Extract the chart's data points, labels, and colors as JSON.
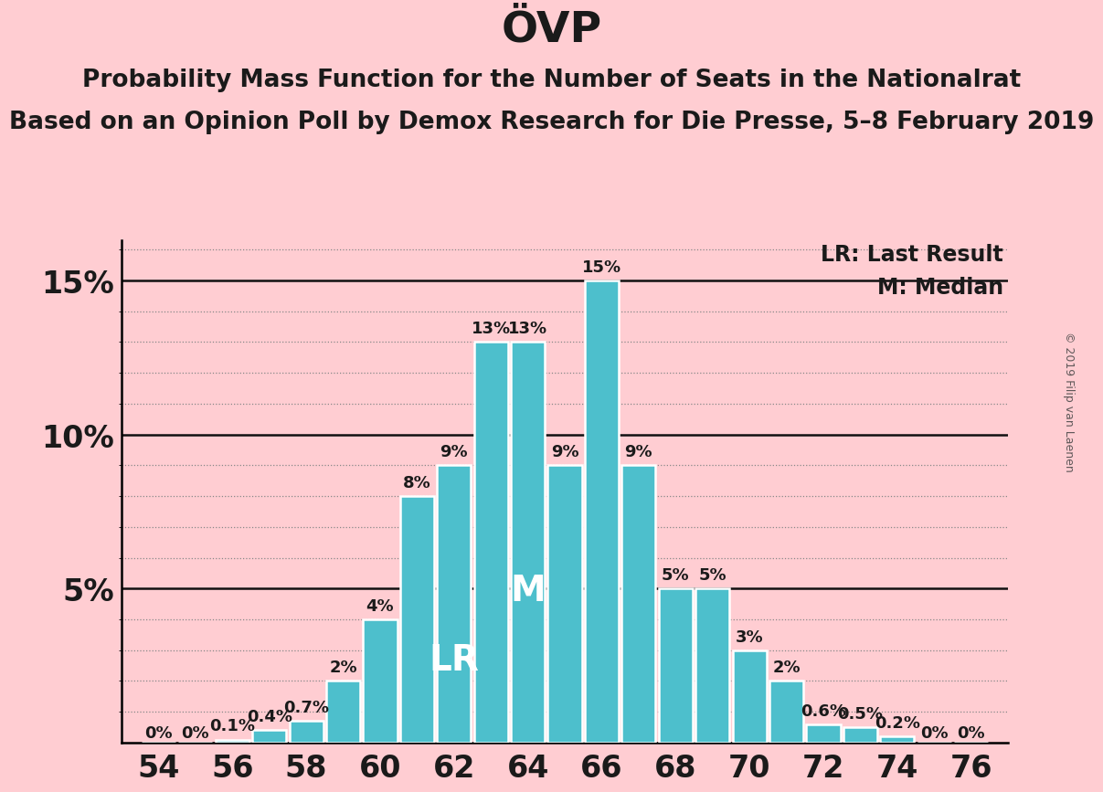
{
  "title": "ÖVP",
  "subtitle1": "Probability Mass Function for the Number of Seats in the Nationalrat",
  "subtitle2": "Based on an Opinion Poll by Demox Research for Die Presse, 5–8 February 2019",
  "watermark": "© 2019 Filip van Laenen",
  "legend_lr": "LR: Last Result",
  "legend_m": "M: Median",
  "background_color": "#FFCDD2",
  "bar_color": "#4DBFCC",
  "bar_edge_color": "#FFFFFF",
  "seats": [
    54,
    55,
    56,
    57,
    58,
    59,
    60,
    61,
    62,
    63,
    64,
    65,
    66,
    67,
    68,
    69,
    70,
    71,
    72,
    73,
    74,
    75,
    76
  ],
  "probabilities": [
    0.0,
    0.0,
    0.001,
    0.004,
    0.007,
    0.02,
    0.04,
    0.08,
    0.09,
    0.13,
    0.13,
    0.09,
    0.15,
    0.09,
    0.05,
    0.05,
    0.03,
    0.02,
    0.006,
    0.005,
    0.002,
    0.0,
    0.0
  ],
  "bar_labels": [
    "0%",
    "0%",
    "0.1%",
    "0.4%",
    "0.7%",
    "2%",
    "4%",
    "8%",
    "9%",
    "13%",
    "13%",
    "9%",
    "15%",
    "9%",
    "5%",
    "5%",
    "3%",
    "2%",
    "0.6%",
    "0.5%",
    "0.2%",
    "0%",
    "0%"
  ],
  "lr_seat": 62,
  "median_seat": 64,
  "xlim": [
    53,
    77
  ],
  "ylim": [
    0,
    0.163
  ],
  "xticks": [
    54,
    56,
    58,
    60,
    62,
    64,
    66,
    68,
    70,
    72,
    74,
    76
  ],
  "ytick_vals": [
    0.05,
    0.1,
    0.15
  ],
  "ytick_labels": [
    "5%",
    "10%",
    "15%"
  ],
  "title_fontsize": 34,
  "subtitle_fontsize": 19,
  "axis_tick_fontsize": 24,
  "bar_label_fontsize": 13,
  "annotation_fontsize": 28,
  "legend_fontsize": 17,
  "watermark_fontsize": 9,
  "text_color": "#1a1a1a",
  "grid_minor_color": "#888888",
  "solid_line_color": "#111111"
}
